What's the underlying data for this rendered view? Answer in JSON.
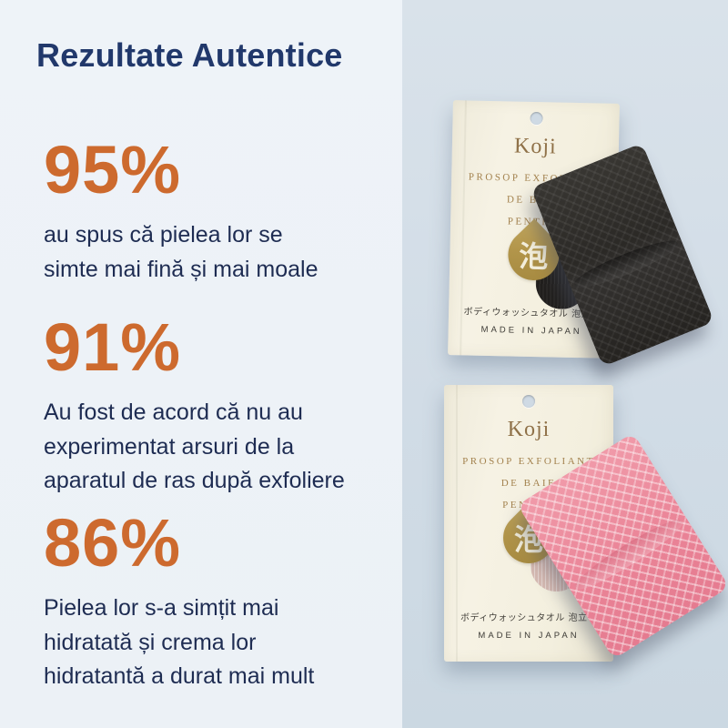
{
  "title": "Rezultate Autentice",
  "stats": [
    {
      "value": "95%",
      "description": "au spus că pielea lor se\nsimte mai fină și mai moale"
    },
    {
      "value": "91%",
      "description": "Au fost de acord că nu au\nexperimentat arsuri de la\naparatul de ras după exfoliere"
    },
    {
      "value": "86%",
      "description": "Pielea lor s-a simțit mai\nhidratată și crema lor\nhidratantă a durat mai mult"
    }
  ],
  "products": [
    {
      "brand": "Koji",
      "product_line1": "PROSOP EXFOLIANT",
      "product_line2": "DE BAIE",
      "product_line3": "PENTRU",
      "drop_character": "泡",
      "japanese_label": "ボディウォッシュタオル 泡立ち",
      "origin_label": "MADE IN JAPAN",
      "towel_color_name": "black"
    },
    {
      "brand": "Koji",
      "product_line1": "PROSOP EXFOLIANT",
      "product_line2": "DE BAIE",
      "product_line3": "PENTRU",
      "drop_character": "泡",
      "japanese_label": "ボディウォッシュタオル 泡立ち",
      "origin_label": "MADE IN JAPAN",
      "towel_color_name": "pink"
    }
  ],
  "colors": {
    "accent_orange": "#cd6a2e",
    "headline_navy": "#21386b",
    "body_navy": "#1e2c52",
    "background_left": "#edf2f7",
    "background_right": "#d1dce6",
    "package_cream": "#f3efde",
    "package_gold": "#a3824e",
    "towel_black": "#2e2c29",
    "towel_pink": "#ec8a9c"
  }
}
